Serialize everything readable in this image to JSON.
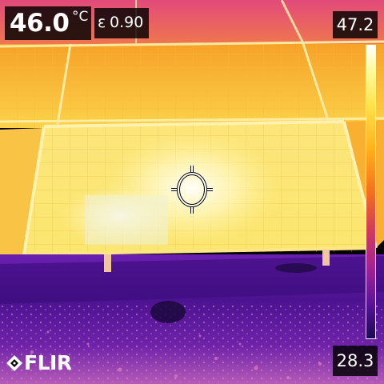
{
  "measurement": {
    "spot_temperature": "46.0",
    "unit": "°C",
    "emissivity_symbol": "ε",
    "emissivity_value": "0.90"
  },
  "color_scale": {
    "max": "47.2",
    "min": "28.3",
    "palette": "iron",
    "colors": [
      "#ffffff",
      "#fffca0",
      "#ffe34d",
      "#ffb21c",
      "#f5701c",
      "#d33a5a",
      "#a22394",
      "#5b139a",
      "#1a0a52"
    ]
  },
  "logo": {
    "brand": "FLIR"
  },
  "icons": {
    "crosshair": "spot-meter-icon",
    "logo_mark": "flir-diamond-icon"
  }
}
